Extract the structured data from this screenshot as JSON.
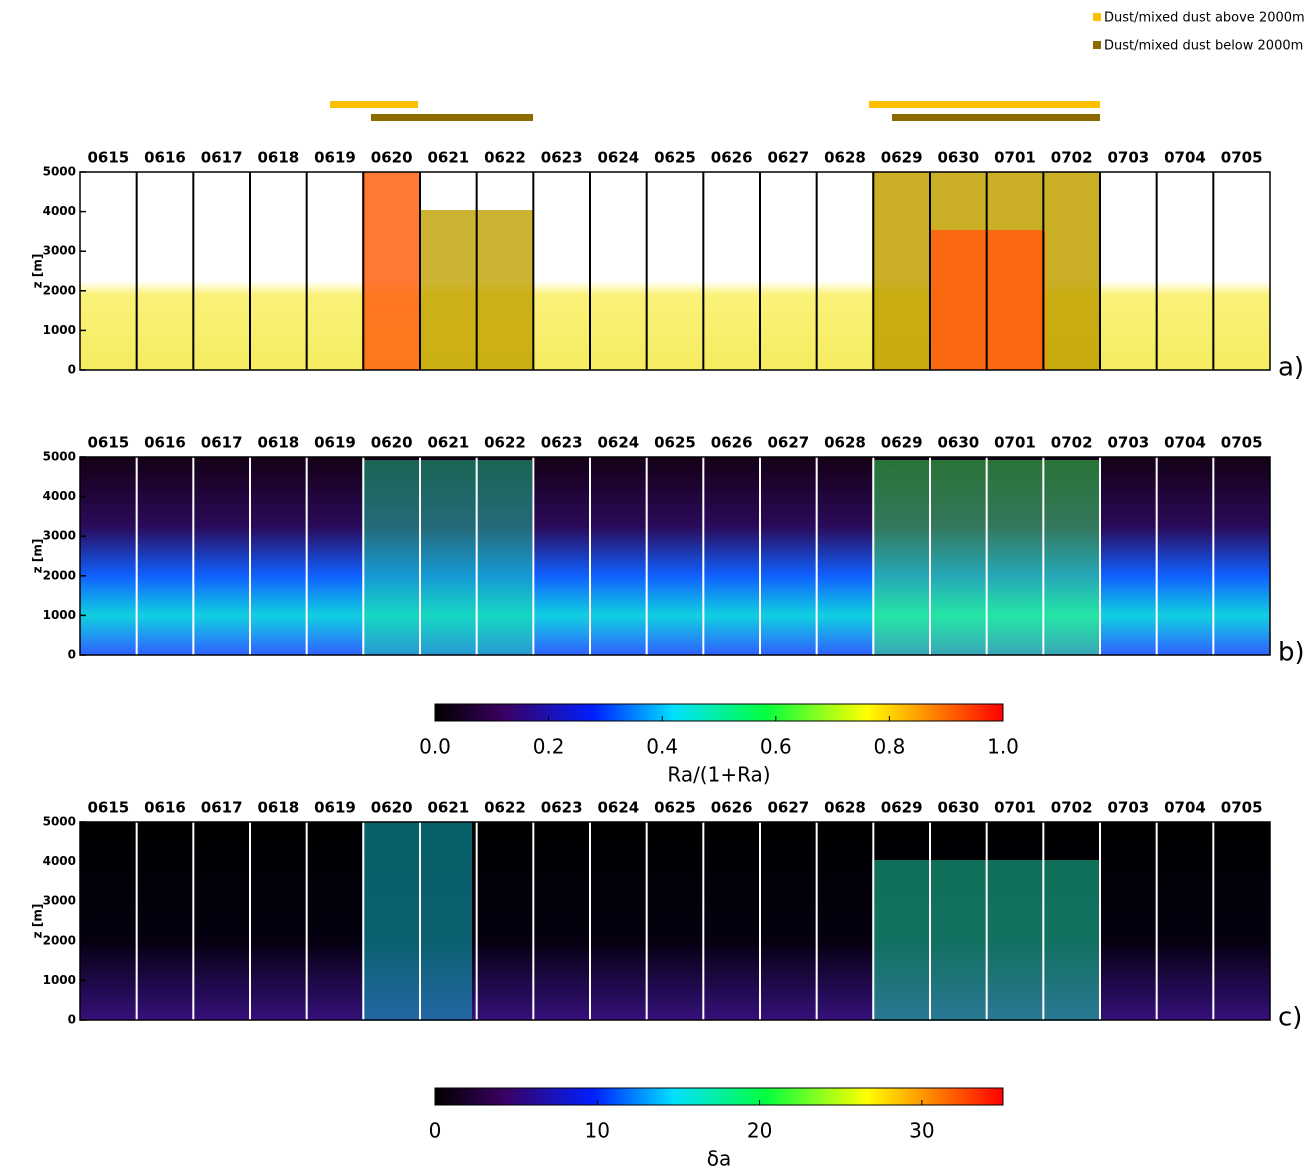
{
  "legend": [
    {
      "name": "Dust/mixed dust  above 2000m",
      "color": "#fdbf00"
    },
    {
      "name": "Dust/mixed dust below 2000m",
      "color": "#8b6a00"
    }
  ],
  "chart_data": [
    {
      "type": "heatmap",
      "categories": [
        "0615",
        "0616",
        "0617",
        "0618",
        "0619",
        "0620",
        "0621",
        "0622",
        "0623",
        "0624",
        "0625",
        "0626",
        "0627",
        "0628",
        "0629",
        "0630",
        "0701",
        "0702",
        "0703",
        "0704",
        "0705"
      ],
      "ylabel": "z [m]",
      "ylim": [
        0,
        5000
      ],
      "yticks": [
        0,
        1000,
        2000,
        3000,
        4000,
        5000
      ],
      "panel_label": "a)"
    },
    {
      "type": "heatmap",
      "categories": [
        "0615",
        "0616",
        "0617",
        "0618",
        "0619",
        "0620",
        "0621",
        "0622",
        "0623",
        "0624",
        "0625",
        "0626",
        "0627",
        "0628",
        "0629",
        "0630",
        "0701",
        "0702",
        "0703",
        "0704",
        "0705"
      ],
      "ylabel": "z [m]",
      "ylim": [
        0,
        5000
      ],
      "yticks": [
        0,
        1000,
        2000,
        3000,
        4000,
        5000
      ],
      "panel_label": "b)",
      "colorbar": {
        "label": "Ra/(1+Ra)",
        "lim": [
          0,
          1
        ],
        "ticks": [
          {
            "value": 0,
            "label": "0.0"
          },
          {
            "value": 0.2,
            "label": "0.2"
          },
          {
            "value": 0.4,
            "label": "0.4"
          },
          {
            "value": 0.6,
            "label": "0.6"
          },
          {
            "value": 0.8,
            "label": "0.8"
          },
          {
            "value": 1,
            "label": "1.0"
          }
        ]
      }
    },
    {
      "type": "heatmap",
      "categories": [
        "0615",
        "0616",
        "0617",
        "0618",
        "0619",
        "0620",
        "0621",
        "0622",
        "0623",
        "0624",
        "0625",
        "0626",
        "0627",
        "0628",
        "0629",
        "0630",
        "0701",
        "0702",
        "0703",
        "0704",
        "0705"
      ],
      "ylabel": "z [m]",
      "ylim": [
        0,
        5000
      ],
      "yticks": [
        0,
        1000,
        2000,
        3000,
        4000,
        5000
      ],
      "panel_label": "c)",
      "colorbar": {
        "label": "δa",
        "lim": [
          0,
          35
        ],
        "ticks": [
          0,
          10,
          20,
          30
        ]
      }
    }
  ]
}
